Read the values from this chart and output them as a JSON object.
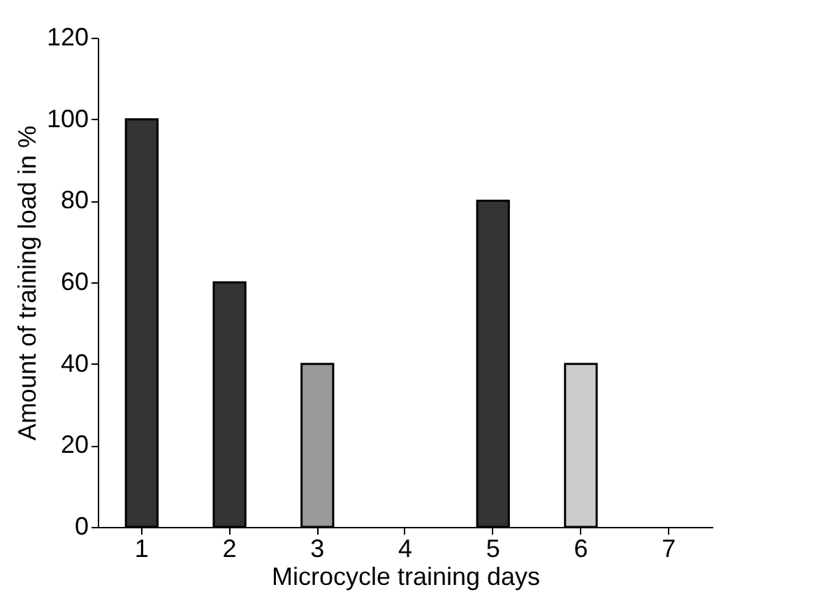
{
  "chart_data": {
    "type": "bar",
    "xlabel": "Microcycle training days",
    "ylabel": "Amount of training load in %",
    "categories": [
      "1",
      "2",
      "3",
      "4",
      "5",
      "6",
      "7"
    ],
    "values": [
      100,
      60,
      40,
      null,
      80,
      40,
      null
    ],
    "colors": [
      "#333333",
      "#333333",
      "#999999",
      "#333333",
      "#333333",
      "#cccccc",
      "#333333"
    ],
    "ylim": [
      0,
      120
    ],
    "yticks": [
      0,
      20,
      40,
      60,
      80,
      100,
      120
    ],
    "grid": false
  }
}
